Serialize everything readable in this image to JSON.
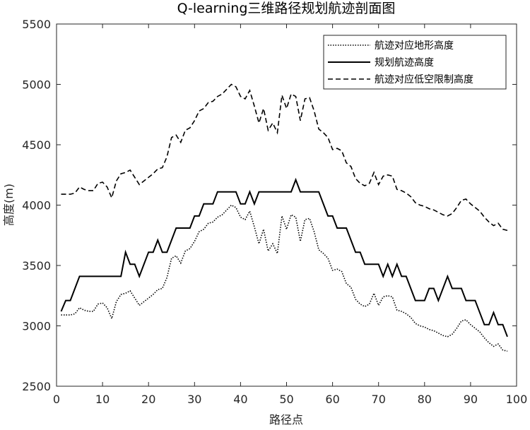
{
  "chart_data": {
    "type": "line",
    "title": "Q-learning三维路径规划航迹剖面图",
    "xlabel": "路径点",
    "ylabel": "高度(m)",
    "xlim": [
      0,
      100
    ],
    "xticks": [
      0,
      10,
      20,
      30,
      40,
      50,
      60,
      70,
      80,
      90,
      100
    ],
    "ylim": [
      2500,
      5500
    ],
    "yticks": [
      2500,
      3000,
      3500,
      4000,
      4500,
      5000,
      5500
    ],
    "legend": "top-right",
    "x": [
      1,
      2,
      3,
      4,
      5,
      6,
      7,
      8,
      9,
      10,
      11,
      12,
      13,
      14,
      15,
      16,
      17,
      18,
      19,
      20,
      21,
      22,
      23,
      24,
      25,
      26,
      27,
      28,
      29,
      30,
      31,
      32,
      33,
      34,
      35,
      36,
      37,
      38,
      39,
      40,
      41,
      42,
      43,
      44,
      45,
      46,
      47,
      48,
      49,
      50,
      51,
      52,
      53,
      54,
      55,
      56,
      57,
      58,
      59,
      60,
      61,
      62,
      63,
      64,
      65,
      66,
      67,
      68,
      69,
      70,
      71,
      72,
      73,
      74,
      75,
      76,
      77,
      78,
      79,
      80,
      81,
      82,
      83,
      84,
      85,
      86,
      87,
      88,
      89,
      90,
      91,
      92,
      93,
      94,
      95,
      96,
      97,
      98
    ],
    "series": [
      {
        "name": "航迹对应地形高度",
        "color": "#000000",
        "line_style": "dotted",
        "values": [
          3090,
          3090,
          3090,
          3100,
          3150,
          3130,
          3120,
          3120,
          3180,
          3190,
          3150,
          3060,
          3200,
          3260,
          3270,
          3290,
          3230,
          3170,
          3200,
          3230,
          3260,
          3300,
          3310,
          3400,
          3560,
          3580,
          3520,
          3620,
          3640,
          3700,
          3780,
          3800,
          3850,
          3860,
          3900,
          3920,
          3960,
          4000,
          3980,
          3900,
          3880,
          3950,
          3820,
          3680,
          3800,
          3620,
          3680,
          3600,
          3910,
          3800,
          3920,
          3900,
          3700,
          3880,
          3890,
          3780,
          3630,
          3600,
          3560,
          3460,
          3470,
          3450,
          3350,
          3320,
          3220,
          3180,
          3160,
          3180,
          3270,
          3170,
          3240,
          3250,
          3240,
          3130,
          3120,
          3100,
          3070,
          3020,
          3000,
          2990,
          2970,
          2960,
          2940,
          2920,
          2910,
          2930,
          2980,
          3040,
          3050,
          3010,
          2980,
          2950,
          2900,
          2860,
          2830,
          2850,
          2800,
          2790
        ]
      },
      {
        "name": "规划航迹高度",
        "color": "#000000",
        "line_style": "solid",
        "values": [
          3120,
          3210,
          3210,
          3310,
          3410,
          3410,
          3410,
          3410,
          3410,
          3410,
          3410,
          3410,
          3410,
          3410,
          3610,
          3510,
          3510,
          3410,
          3510,
          3610,
          3610,
          3710,
          3610,
          3610,
          3710,
          3810,
          3810,
          3810,
          3810,
          3910,
          3910,
          4010,
          4010,
          4010,
          4110,
          4110,
          4110,
          4110,
          4110,
          4010,
          4010,
          4110,
          4010,
          4110,
          4110,
          4110,
          4110,
          4110,
          4110,
          4110,
          4110,
          4210,
          4110,
          4110,
          4110,
          4110,
          4110,
          4010,
          3910,
          3910,
          3810,
          3810,
          3810,
          3710,
          3610,
          3610,
          3510,
          3510,
          3510,
          3510,
          3410,
          3510,
          3410,
          3510,
          3410,
          3410,
          3310,
          3210,
          3210,
          3210,
          3310,
          3310,
          3210,
          3310,
          3410,
          3310,
          3310,
          3310,
          3210,
          3210,
          3210,
          3110,
          3010,
          3010,
          3110,
          3010,
          3010,
          2910
        ]
      },
      {
        "name": "航迹对应低空限制高度",
        "color": "#000000",
        "line_style": "dashed",
        "values": [
          4090,
          4090,
          4090,
          4100,
          4150,
          4130,
          4120,
          4120,
          4180,
          4190,
          4150,
          4060,
          4200,
          4260,
          4270,
          4290,
          4230,
          4170,
          4200,
          4230,
          4260,
          4300,
          4310,
          4400,
          4560,
          4580,
          4520,
          4620,
          4640,
          4700,
          4780,
          4800,
          4850,
          4860,
          4900,
          4920,
          4960,
          5000,
          4980,
          4900,
          4880,
          4950,
          4820,
          4680,
          4800,
          4620,
          4680,
          4600,
          4910,
          4800,
          4920,
          4900,
          4700,
          4880,
          4890,
          4780,
          4630,
          4600,
          4560,
          4460,
          4470,
          4450,
          4350,
          4320,
          4220,
          4180,
          4160,
          4180,
          4270,
          4170,
          4240,
          4250,
          4240,
          4130,
          4120,
          4100,
          4070,
          4020,
          4000,
          3990,
          3970,
          3960,
          3940,
          3920,
          3910,
          3930,
          3980,
          4040,
          4050,
          4010,
          3980,
          3950,
          3900,
          3860,
          3830,
          3850,
          3800,
          3790
        ]
      }
    ]
  }
}
